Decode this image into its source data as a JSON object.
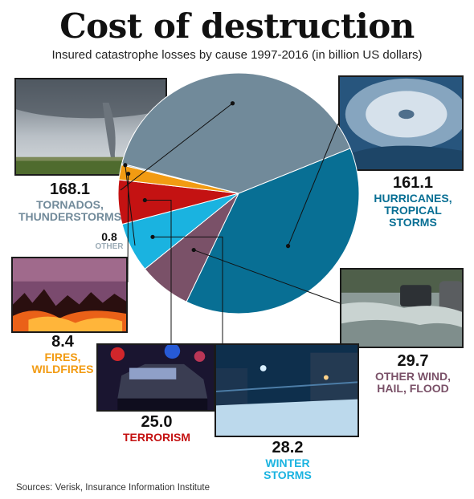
{
  "title": "Cost of destruction",
  "subtitle": "Insured catastrophe losses by cause 1997-2016 (in billion US dollars)",
  "source": "Sources: Verisk, Insurance Information Institute",
  "colors": {
    "tornados": "#718a9a",
    "hurricanes": "#086f94",
    "other_wind": "#7a5168",
    "winter": "#1ab3e0",
    "terrorism": "#c41212",
    "fires": "#f29b12",
    "other": "#a3b8c6"
  },
  "chart_data": {
    "type": "pie",
    "title": "Cost of destruction",
    "subtitle": "Insured catastrophe losses by cause 1997-2016 (in billion US dollars)",
    "slices": [
      {
        "key": "hurricanes",
        "value": 161.1,
        "value_label": "161.1",
        "label": "HURRICANES, TROPICAL STORMS",
        "label_lines": [
          "HURRICANES,",
          "TROPICAL",
          "STORMS"
        ],
        "color": "#086f94",
        "image": "hurricane-photo"
      },
      {
        "key": "other_wind",
        "value": 29.7,
        "value_label": "29.7",
        "label": "OTHER WIND, HAIL, FLOOD",
        "label_lines": [
          "OTHER WIND,",
          "HAIL, FLOOD"
        ],
        "color": "#7a5168",
        "image": "flood-photo"
      },
      {
        "key": "winter",
        "value": 28.2,
        "value_label": "28.2",
        "label": "WINTER STORMS",
        "label_lines": [
          "WINTER",
          "STORMS"
        ],
        "color": "#1ab3e0",
        "image": "winter-storm-photo"
      },
      {
        "key": "terrorism",
        "value": 25.0,
        "value_label": "25.0",
        "label": "TERRORISM",
        "label_lines": [
          "TERRORISM"
        ],
        "color": "#c41212",
        "image": "police-car-photo"
      },
      {
        "key": "fires",
        "value": 8.4,
        "value_label": "8.4",
        "label": "FIRES, WILDFIRES",
        "label_lines": [
          "FIRES,",
          "WILDFIRES"
        ],
        "color": "#f29b12",
        "image": "wildfire-photo"
      },
      {
        "key": "other",
        "value": 0.8,
        "value_label": "0.8",
        "label": "OTHER",
        "label_lines": [
          "OTHER"
        ],
        "color": "#a3b8c6",
        "image": null
      },
      {
        "key": "tornados",
        "value": 168.1,
        "value_label": "168.1",
        "label": "TORNADOS, THUNDERSTORMS",
        "label_lines": [
          "TORNADOS,",
          "THUNDERSTORMS"
        ],
        "color": "#718a9a",
        "image": "tornado-photo"
      }
    ]
  }
}
